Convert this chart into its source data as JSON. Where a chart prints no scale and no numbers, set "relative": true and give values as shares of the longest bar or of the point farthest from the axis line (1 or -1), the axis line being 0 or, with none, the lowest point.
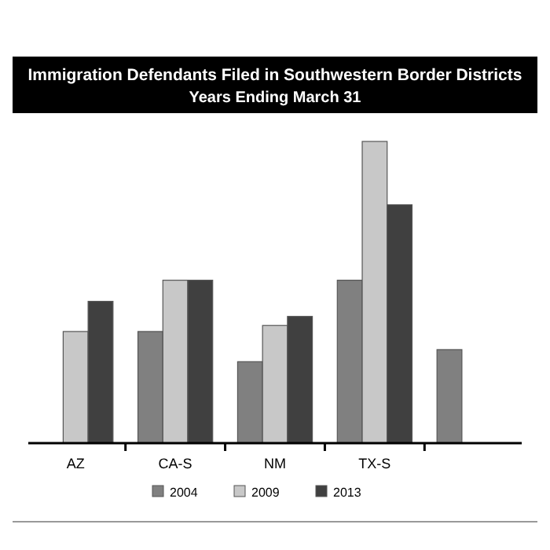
{
  "chart_data": {
    "type": "bar",
    "title": "Immigration Defendants Filed in Southwestern Border Districts",
    "subtitle": "Years Ending March 31",
    "relative": true,
    "categories": [
      "AZ",
      "CA-S",
      "NM",
      "TX-S",
      null
    ],
    "legend": "bottom",
    "series": [
      {
        "name": "2004",
        "color": "#808080",
        "values": [
          null,
          0.37,
          0.27,
          0.54,
          0.31
        ]
      },
      {
        "name": "2009",
        "color": "#c8c8c8",
        "values": [
          0.37,
          0.54,
          0.39,
          1,
          null
        ]
      },
      {
        "name": "2013",
        "color": "#404040",
        "values": [
          0.47,
          0.54,
          0.42,
          0.79,
          null
        ]
      }
    ]
  }
}
